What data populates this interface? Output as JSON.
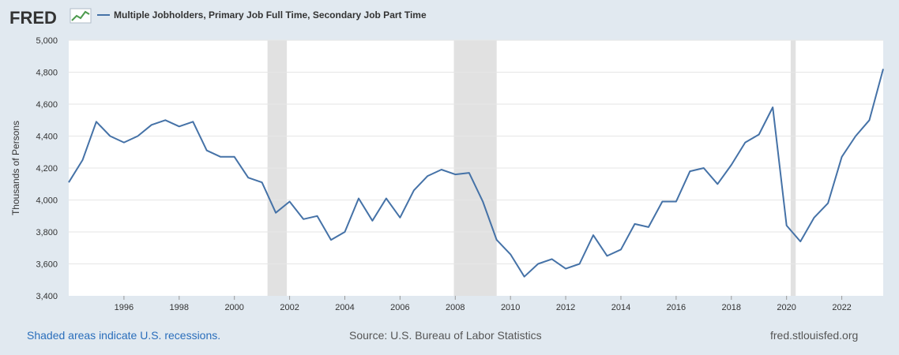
{
  "header": {
    "logo_text": "FRED",
    "logo_icon": "line-chart-icon"
  },
  "colors": {
    "background": "#e1e9f0",
    "plot_background": "#ffffff",
    "series": "#4572a7",
    "recession_shade": "#e1e1e1",
    "gridline": "#e6e6e6",
    "link": "#2a6ebb"
  },
  "footer": {
    "left": "Shaded areas indicate U.S. recessions.",
    "center": "Source: U.S. Bureau of Labor Statistics",
    "right": "fred.stlouisfed.org"
  },
  "chart_data": {
    "type": "line",
    "ylabel": "Thousands of Persons",
    "ylim": [
      3400,
      5000
    ],
    "yticks": [
      3400,
      3600,
      3800,
      4000,
      4200,
      4400,
      4600,
      4800,
      5000
    ],
    "ytick_labels": [
      "3,400",
      "3,600",
      "3,800",
      "4,000",
      "4,200",
      "4,400",
      "4,600",
      "4,800",
      "5,000"
    ],
    "xlim": [
      1994.0,
      2023.5
    ],
    "xticks": [
      1996,
      1998,
      2000,
      2002,
      2004,
      2006,
      2008,
      2010,
      2012,
      2014,
      2016,
      2018,
      2020,
      2022
    ],
    "xtick_labels": [
      "1996",
      "1998",
      "2000",
      "2002",
      "2004",
      "2006",
      "2008",
      "2010",
      "2012",
      "2014",
      "2016",
      "2018",
      "2020",
      "2022"
    ],
    "grid": true,
    "legend": "top-left",
    "recessions": [
      [
        2001.2,
        2001.9
      ],
      [
        2007.95,
        2009.5
      ],
      [
        2020.15,
        2020.33
      ]
    ],
    "series": [
      {
        "name": "Multiple Jobholders, Primary Job Full Time, Secondary Job Part Time",
        "x": [
          1994.0,
          1994.5,
          1995.0,
          1995.5,
          1996.0,
          1996.5,
          1997.0,
          1997.5,
          1998.0,
          1998.5,
          1999.0,
          1999.5,
          2000.0,
          2000.5,
          2001.0,
          2001.5,
          2002.0,
          2002.5,
          2003.0,
          2003.5,
          2004.0,
          2004.5,
          2005.0,
          2005.5,
          2006.0,
          2006.5,
          2007.0,
          2007.5,
          2008.0,
          2008.5,
          2009.0,
          2009.5,
          2010.0,
          2010.5,
          2011.0,
          2011.5,
          2012.0,
          2012.5,
          2013.0,
          2013.5,
          2014.0,
          2014.5,
          2015.0,
          2015.5,
          2016.0,
          2016.5,
          2017.0,
          2017.5,
          2018.0,
          2018.5,
          2019.0,
          2019.5,
          2020.0,
          2020.5,
          2021.0,
          2021.5,
          2022.0,
          2022.5,
          2023.0,
          2023.5
        ],
        "values": [
          4110,
          4250,
          4490,
          4400,
          4360,
          4400,
          4470,
          4500,
          4460,
          4490,
          4310,
          4270,
          4270,
          4140,
          4110,
          3920,
          3990,
          3880,
          3900,
          3750,
          3800,
          4010,
          3870,
          4010,
          3890,
          4060,
          4150,
          4190,
          4160,
          4170,
          3990,
          3750,
          3660,
          3520,
          3600,
          3630,
          3570,
          3600,
          3780,
          3650,
          3690,
          3850,
          3830,
          3990,
          3990,
          4180,
          4200,
          4100,
          4220,
          4360,
          4410,
          4580,
          3840,
          3740,
          3890,
          3980,
          4270,
          4400,
          4500,
          4820
        ]
      }
    ]
  }
}
